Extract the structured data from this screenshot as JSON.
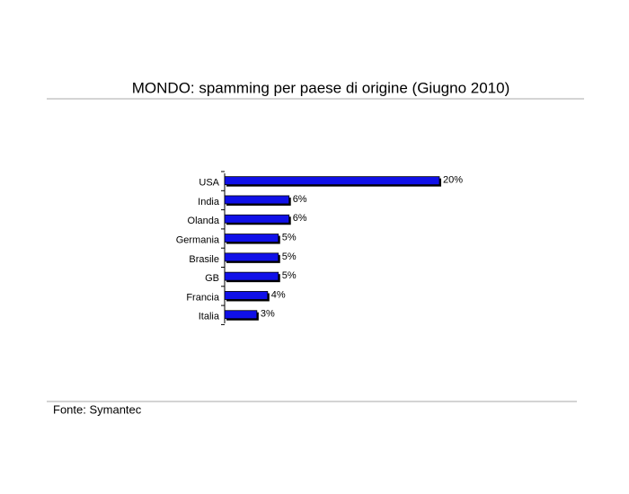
{
  "chart_data": {
    "type": "bar",
    "orientation": "horizontal",
    "title": "MONDO: spamming per paese di origine (Giugno 2010)",
    "categories": [
      "USA",
      "India",
      "Olanda",
      "Germania",
      "Brasile",
      "GB",
      "Francia",
      "Italia"
    ],
    "values": [
      20,
      6,
      6,
      5,
      5,
      5,
      4,
      3
    ],
    "value_labels": [
      "20%",
      "6%",
      "6%",
      "5%",
      "5%",
      "5%",
      "4%",
      "3%"
    ],
    "color": "#1010e8",
    "source": "Fonte: Symantec"
  }
}
